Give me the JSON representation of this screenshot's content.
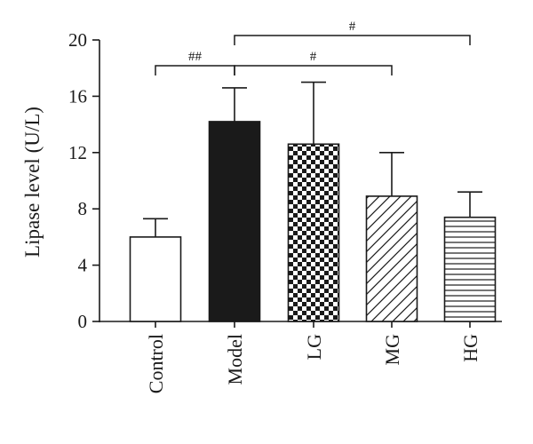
{
  "chart_data": {
    "type": "bar",
    "title": "",
    "xlabel": "",
    "ylabel": "Lipase level (U/L)",
    "ylim": [
      0,
      20
    ],
    "yticks": [
      0,
      4,
      8,
      12,
      16,
      20
    ],
    "categories": [
      "Control",
      "Model",
      "LG",
      "MG",
      "HG"
    ],
    "values": [
      6.0,
      14.2,
      12.6,
      8.9,
      7.4
    ],
    "errors": [
      1.3,
      2.4,
      4.4,
      3.1,
      1.8
    ],
    "bar_fills": [
      "open",
      "solid",
      "checkerboard",
      "diagonal-hatch",
      "horizontal-lines"
    ],
    "significance": [
      {
        "from": 0,
        "to": 1,
        "label": "##"
      },
      {
        "from": 1,
        "to": 3,
        "label": "#"
      },
      {
        "from": 1,
        "to": 4,
        "label": "#"
      }
    ],
    "grid": false,
    "colors": {
      "bar_solid": "#1a1a1a",
      "stroke": "#1a1a1a",
      "background": "#ffffff"
    }
  }
}
